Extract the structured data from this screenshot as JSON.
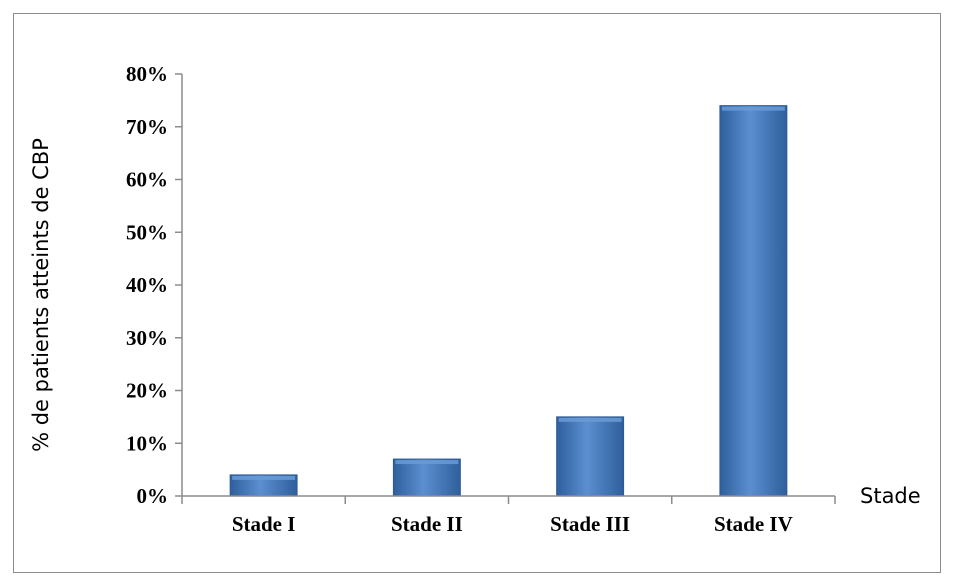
{
  "chart_data": {
    "type": "bar",
    "categories": [
      "Stade I",
      "Stade II",
      "Stade III",
      "Stade IV"
    ],
    "values": [
      0.04,
      0.07,
      0.15,
      0.74
    ],
    "ylim": [
      0,
      0.8
    ],
    "yticks": [
      0,
      0.1,
      0.2,
      0.3,
      0.4,
      0.5,
      0.6,
      0.7,
      0.8
    ],
    "ytick_labels": [
      "0%",
      "10%",
      "20%",
      "30%",
      "40%",
      "50%",
      "60%",
      "70%",
      "80%"
    ],
    "xlabel": "Stade",
    "ylabel": "% de patients atteints de CBP",
    "grid": false,
    "legend": "none",
    "colors": {
      "bar": "#4a7ebb",
      "bar_light": "#6a9bd6",
      "bar_dark": "#2c5a94",
      "axis": "#8c8c8c"
    }
  }
}
